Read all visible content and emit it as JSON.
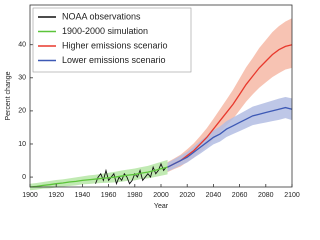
{
  "chart_data": {
    "type": "line",
    "xlabel": "Year",
    "ylabel": "Percent change",
    "xlim": [
      1900,
      2100
    ],
    "ylim": [
      -3,
      52
    ],
    "xticks": [
      1900,
      1920,
      1940,
      1960,
      1980,
      2000,
      2020,
      2040,
      2060,
      2080,
      2100
    ],
    "yticks": [
      0,
      10,
      20,
      30,
      40
    ],
    "legend": "upper left",
    "series": [
      {
        "name": "NOAA observations",
        "color": "#111111",
        "x": [
          1950,
          1952,
          1954,
          1956,
          1958,
          1960,
          1962,
          1964,
          1966,
          1968,
          1970,
          1972,
          1974,
          1976,
          1978,
          1980,
          1982,
          1984,
          1986,
          1988,
          1990,
          1992,
          1994,
          1996,
          1998,
          2000,
          2002,
          2004
        ],
        "values": [
          -2,
          0,
          1,
          -1,
          2,
          -1,
          0,
          1,
          -2,
          0,
          -1,
          1,
          0,
          -2,
          -1,
          1,
          0,
          2,
          -1,
          0,
          1,
          0,
          3,
          1,
          2,
          4,
          2,
          3
        ]
      },
      {
        "name": "1900-2000 simulation",
        "color": "#5cc43a",
        "band_color": "#b6e6a6",
        "x": [
          1900,
          1905,
          1910,
          1915,
          1920,
          1925,
          1930,
          1935,
          1940,
          1945,
          1950,
          1955,
          1960,
          1965,
          1970,
          1975,
          1980,
          1985,
          1990,
          1995,
          2000,
          2005
        ],
        "values": [
          -3,
          -2.8,
          -2.5,
          -2.3,
          -2,
          -1.8,
          -1.5,
          -1.3,
          -1,
          -0.8,
          -0.6,
          -0.4,
          -0.2,
          0,
          0.3,
          0.6,
          0.8,
          1.2,
          1.5,
          2,
          2.5,
          3
        ],
        "upper": [
          -2,
          -1.8,
          -1.5,
          -1.2,
          -0.9,
          -0.7,
          -0.4,
          -0.1,
          0.2,
          0.5,
          0.7,
          1,
          1.3,
          1.6,
          2,
          2.3,
          2.6,
          3,
          3.4,
          4,
          4.6,
          5.2
        ],
        "lower": [
          -4,
          -3.8,
          -3.5,
          -3.4,
          -3.1,
          -2.9,
          -2.7,
          -2.5,
          -2.2,
          -2.1,
          -1.9,
          -1.8,
          -1.7,
          -1.6,
          -1.4,
          -1.1,
          -1,
          -0.6,
          -0.4,
          0,
          0.4,
          0.8
        ]
      },
      {
        "name": "Higher emissions scenario",
        "color": "#e8392d",
        "band_color": "#f6b8a6",
        "x": [
          2005,
          2010,
          2015,
          2020,
          2025,
          2030,
          2035,
          2040,
          2045,
          2050,
          2055,
          2060,
          2065,
          2070,
          2075,
          2080,
          2085,
          2090,
          2095,
          2100
        ],
        "values": [
          3,
          4,
          5,
          6.5,
          8,
          10,
          12,
          14.5,
          17,
          19.5,
          22,
          25,
          28,
          30.5,
          33,
          35,
          37,
          38.5,
          39.5,
          40
        ],
        "upper": [
          4.5,
          5.6,
          6.8,
          8.4,
          10.2,
          12.4,
          14.8,
          17.6,
          20.5,
          23.4,
          26.4,
          29.8,
          33.2,
          36,
          39,
          41.4,
          43.8,
          45.6,
          47,
          48
        ],
        "lower": [
          1.5,
          2.4,
          3.2,
          4.6,
          5.8,
          7.6,
          9.2,
          11.4,
          13.5,
          15.6,
          17.6,
          20.2,
          22.8,
          25,
          27,
          28.6,
          30.2,
          31.4,
          32.5,
          33
        ]
      },
      {
        "name": "Lower emissions scenario",
        "color": "#3d59b5",
        "band_color": "#b3bde3",
        "x": [
          2005,
          2010,
          2015,
          2020,
          2025,
          2030,
          2035,
          2040,
          2045,
          2050,
          2055,
          2060,
          2065,
          2070,
          2075,
          2080,
          2085,
          2090,
          2095,
          2100
        ],
        "values": [
          3,
          4,
          5,
          6,
          7.5,
          9,
          10.5,
          12,
          13,
          14.5,
          15.5,
          16.5,
          17.5,
          18.5,
          19,
          19.5,
          20,
          20.5,
          21,
          20.5
        ],
        "upper": [
          4.3,
          5.4,
          6.5,
          7.6,
          9.2,
          10.9,
          12.5,
          14.1,
          15.3,
          16.9,
          18,
          19.1,
          20.2,
          21.3,
          21.9,
          22.5,
          23.1,
          23.7,
          24.2,
          23.8
        ],
        "lower": [
          1.7,
          2.6,
          3.5,
          4.4,
          5.8,
          7.1,
          8.5,
          9.9,
          10.7,
          12.1,
          13,
          13.9,
          14.8,
          15.7,
          16.1,
          16.5,
          16.9,
          17.3,
          17.8,
          17.2
        ]
      }
    ]
  }
}
